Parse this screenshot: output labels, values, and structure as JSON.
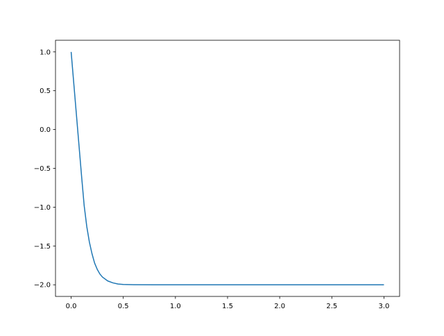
{
  "chart_data": {
    "type": "line",
    "title": "",
    "xlabel": "",
    "ylabel": "",
    "xlim": [
      -0.15,
      3.15
    ],
    "ylim": [
      -2.15,
      1.15
    ],
    "grid": false,
    "x_ticks": [
      "0.0",
      "0.5",
      "1.0",
      "1.5",
      "2.0",
      "2.5",
      "3.0"
    ],
    "x_tick_values": [
      0,
      0.5,
      1,
      1.5,
      2,
      2.5,
      3
    ],
    "y_ticks": [
      "1.0",
      "0.5",
      "0.0",
      "−0.5",
      "−1.0",
      "−1.5",
      "−2.0"
    ],
    "y_tick_values": [
      1,
      0.5,
      0,
      -0.5,
      -1,
      -1.5,
      -2
    ],
    "series": [
      {
        "color": "#1f77b4",
        "x": [
          0,
          0.025,
          0.05,
          0.075,
          0.1,
          0.125,
          0.15,
          0.175,
          0.2,
          0.225,
          0.25,
          0.275,
          0.3,
          0.35,
          0.4,
          0.45,
          0.5,
          0.6,
          0.8,
          1.0,
          1.5,
          2.0,
          2.5,
          3.0
        ],
        "y": [
          1,
          0.6,
          0.2,
          -0.2,
          -0.6,
          -0.98,
          -1.25,
          -1.45,
          -1.6,
          -1.72,
          -1.8,
          -1.86,
          -1.9,
          -1.95,
          -1.975,
          -1.99,
          -1.996,
          -1.999,
          -2,
          -2,
          -2,
          -2,
          -2,
          -2
        ]
      }
    ]
  }
}
